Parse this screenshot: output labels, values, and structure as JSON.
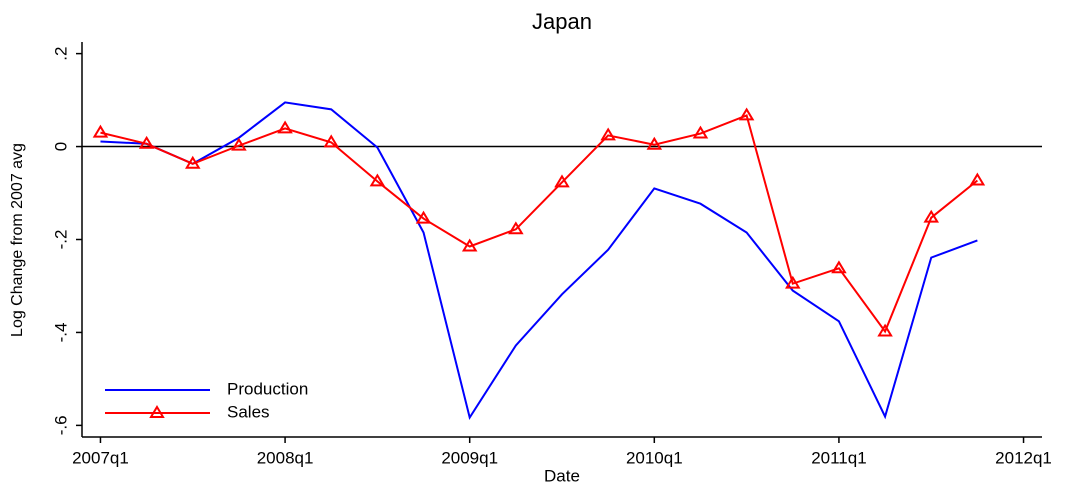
{
  "chart_data": {
    "type": "line",
    "title": "Japan",
    "x_label": "Date",
    "y_label": "Log Change from 2007 avg",
    "x": [
      2007,
      2007.25,
      2007.5,
      2007.75,
      2008,
      2008.25,
      2008.5,
      2008.75,
      2009,
      2009.25,
      2009.5,
      2009.75,
      2010,
      2010.25,
      2010.5,
      2010.75,
      2011,
      2011.25,
      2011.5,
      2011.75
    ],
    "series": [
      {
        "name": "Production",
        "color": "#0000ff",
        "marker": "none",
        "values": [
          0.011,
          0.006,
          -0.037,
          0.019,
          0.095,
          0.08,
          -0.002,
          -0.185,
          -0.583,
          -0.428,
          -0.318,
          -0.222,
          -0.09,
          -0.123,
          -0.185,
          -0.31,
          -0.376,
          -0.581,
          -0.239,
          -0.202
        ]
      },
      {
        "name": "Sales",
        "color": "#ff0000",
        "marker": "triangle",
        "values": [
          0.03,
          0.006,
          -0.037,
          0.002,
          0.039,
          0.009,
          -0.075,
          -0.155,
          -0.215,
          -0.178,
          -0.077,
          0.024,
          0.004,
          0.028,
          0.067,
          -0.295,
          -0.262,
          -0.398,
          -0.153,
          -0.073
        ]
      }
    ],
    "xlim": [
      2006.9,
      2012.1
    ],
    "xticks": [
      {
        "value": 2007,
        "label": "2007q1"
      },
      {
        "value": 2008,
        "label": "2008q1"
      },
      {
        "value": 2009,
        "label": "2009q1"
      },
      {
        "value": 2010,
        "label": "2010q1"
      },
      {
        "value": 2011,
        "label": "2011q1"
      },
      {
        "value": 2012,
        "label": "2012q1"
      }
    ],
    "ylim": [
      -0.625,
      0.225
    ],
    "yticks": [
      {
        "value": -0.6,
        "label": "-.6"
      },
      {
        "value": -0.4,
        "label": "-.4"
      },
      {
        "value": -0.2,
        "label": "-.2"
      },
      0,
      {
        "value": 0.2,
        "label": ".2"
      }
    ],
    "zero_line": true,
    "grid": false,
    "legend_position": "lower left"
  }
}
